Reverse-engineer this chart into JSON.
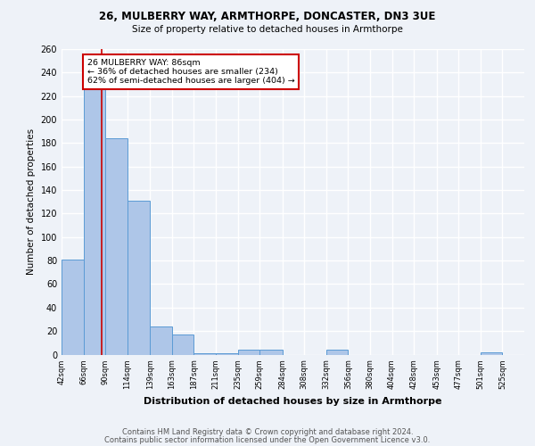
{
  "title1": "26, MULBERRY WAY, ARMTHORPE, DONCASTER, DN3 3UE",
  "title2": "Size of property relative to detached houses in Armthorpe",
  "xlabel": "Distribution of detached houses by size in Armthorpe",
  "ylabel": "Number of detached properties",
  "footer1": "Contains HM Land Registry data © Crown copyright and database right 2024.",
  "footer2": "Contains public sector information licensed under the Open Government Licence v3.0.",
  "annotation_line1": "26 MULBERRY WAY: 86sqm",
  "annotation_line2": "← 36% of detached houses are smaller (234)",
  "annotation_line3": "62% of semi-detached houses are larger (404) →",
  "bar_labels": [
    "42sqm",
    "66sqm",
    "90sqm",
    "114sqm",
    "139sqm",
    "163sqm",
    "187sqm",
    "211sqm",
    "235sqm",
    "259sqm",
    "284sqm",
    "308sqm",
    "332sqm",
    "356sqm",
    "380sqm",
    "404sqm",
    "428sqm",
    "453sqm",
    "477sqm",
    "501sqm",
    "525sqm"
  ],
  "bar_values": [
    81,
    234,
    184,
    131,
    24,
    17,
    1,
    1,
    4,
    4,
    0,
    0,
    4,
    0,
    0,
    0,
    0,
    0,
    0,
    2,
    0
  ],
  "bar_color": "#aec6e8",
  "bar_edge_color": "#5b9bd5",
  "red_line_x": 86,
  "bin_edges": [
    42,
    66,
    90,
    114,
    139,
    163,
    187,
    211,
    235,
    259,
    284,
    308,
    332,
    356,
    380,
    404,
    428,
    453,
    477,
    501,
    525,
    549
  ],
  "ylim": [
    0,
    260
  ],
  "yticks": [
    0,
    20,
    40,
    60,
    80,
    100,
    120,
    140,
    160,
    180,
    200,
    220,
    240,
    260
  ],
  "bg_color": "#eef2f8",
  "plot_bg_color": "#eef2f8",
  "grid_color": "#ffffff",
  "annotation_box_color": "#ffffff",
  "annotation_box_edge": "#cc0000",
  "red_line_color": "#cc0000"
}
